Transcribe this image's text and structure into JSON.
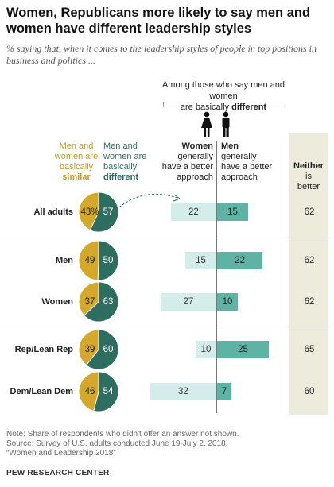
{
  "header": {
    "title": "Women, Republicans more likely to say men and women have different leadership styles",
    "subtitle": "% saying that, when it comes to the leadership styles of people in top positions in business and politics ...",
    "group_header_1": "Among those who say men and women",
    "group_header_2a": "are basically ",
    "group_header_2b": "different"
  },
  "columns": {
    "similar": [
      "Men and",
      "women are",
      "basically"
    ],
    "similar_bold": "similar",
    "different": [
      "Men and",
      "women are",
      "basically"
    ],
    "different_bold": "different",
    "women_bold": "Women",
    "women_rest": [
      "generally",
      "have a better",
      "approach"
    ],
    "men_bold": "Men",
    "men_rest": [
      "generally",
      "have a better",
      "approach"
    ],
    "neither_bold": "Neither",
    "neither_rest": [
      "is",
      "better"
    ]
  },
  "chart_data": {
    "type": "bar",
    "categories": [
      "All adults",
      "Men",
      "Women",
      "Rep/Lean Rep",
      "Dem/Lean Dem"
    ],
    "series": [
      {
        "name": "similar",
        "values": [
          43,
          49,
          37,
          39,
          46
        ]
      },
      {
        "name": "different",
        "values": [
          57,
          50,
          63,
          60,
          54
        ]
      },
      {
        "name": "Women generally have a better approach",
        "values": [
          22,
          15,
          27,
          10,
          32
        ]
      },
      {
        "name": "Men generally have a better approach",
        "values": [
          15,
          22,
          10,
          25,
          7
        ]
      },
      {
        "name": "Neither is better",
        "values": [
          62,
          62,
          62,
          65,
          60
        ]
      }
    ],
    "first_label_suffix": "%",
    "colors": {
      "similar": "#d4a82a",
      "different": "#2e6e61",
      "women_bar": "#d4ecea",
      "men_bar": "#5fb3a5",
      "neither_bg": "#ecebdc"
    }
  },
  "footer": {
    "note": "Note: Share of respondents who didn't offer an answer not shown.",
    "source": "Source: Survey of U.S. adults conducted June 19-July 2, 2018.",
    "report": "“Women and Leadership 2018”",
    "org": "PEW RESEARCH CENTER"
  },
  "icons": [
    "woman-icon",
    "man-icon"
  ]
}
